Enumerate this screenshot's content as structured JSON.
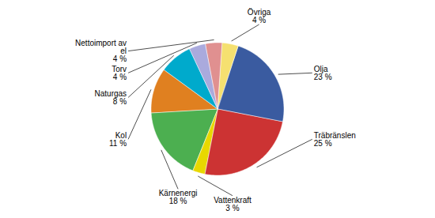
{
  "chart_data": {
    "type": "pie",
    "categories": [
      "Övriga",
      "Olja",
      "Träbränslen",
      "Vattenkraft",
      "Kärnenergi",
      "Kol",
      "Naturgas",
      "Torv",
      "Nettoimport av\nel"
    ],
    "values": [
      4,
      23,
      25,
      3,
      18,
      11,
      8,
      4,
      4
    ],
    "value_labels": [
      "4 %",
      "23 %",
      "25 %",
      "3 %",
      "18 %",
      "11 %",
      "8 %",
      "4 %",
      "4 %"
    ],
    "colors": [
      "#F5E070",
      "#3A5BA0",
      "#CC3333",
      "#E8D800",
      "#4CAF50",
      "#E08020",
      "#00AACC",
      "#AAAADD",
      "#E09090"
    ],
    "data_labels": true
  }
}
